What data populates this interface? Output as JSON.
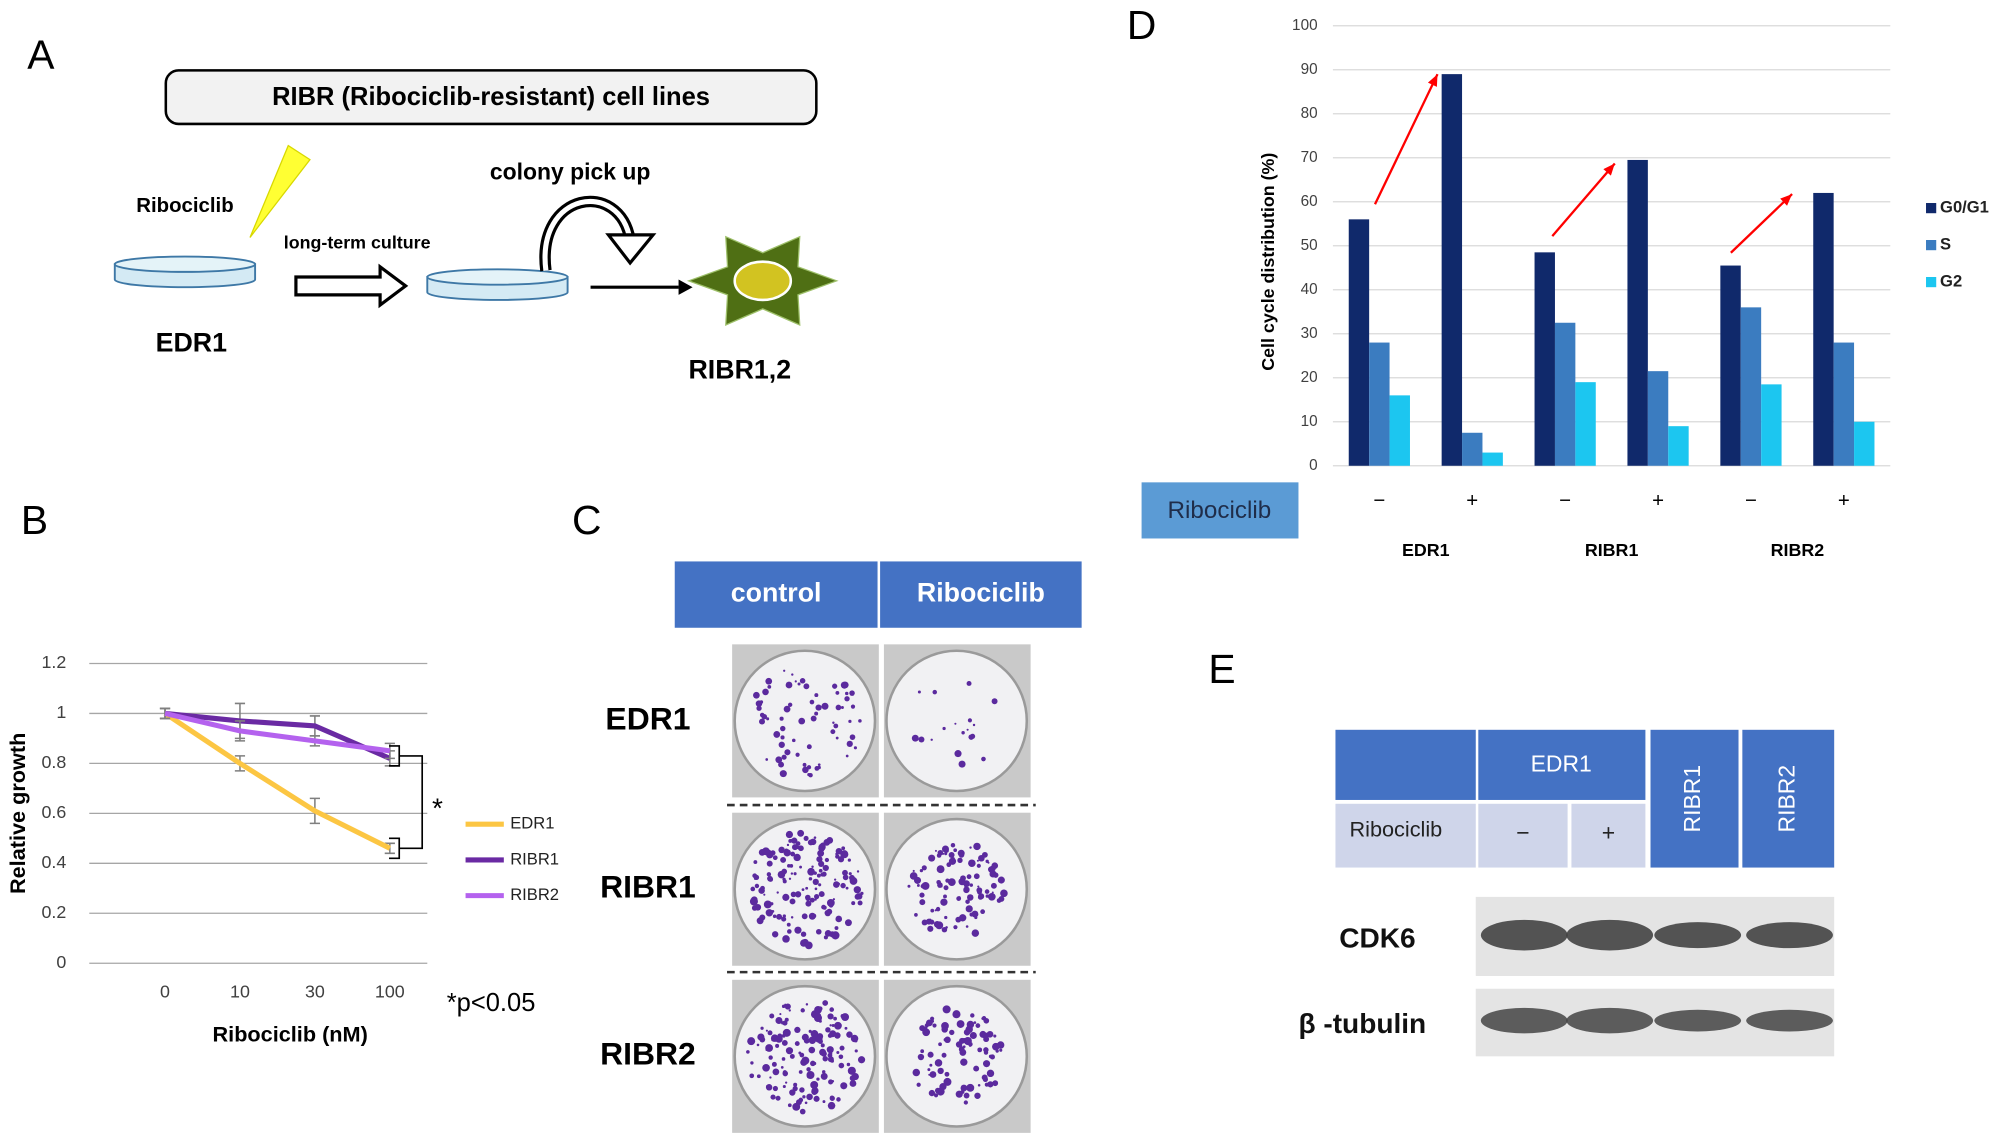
{
  "panel_labels": [
    "A",
    "B",
    "C",
    "D",
    "E"
  ],
  "panel_a": {
    "title": "RIBR (Ribociclib-resistant) cell lines",
    "drug": "Ribociclib",
    "step1": "long-term culture",
    "step2": "colony pick up",
    "source": "EDR1",
    "result": "RIBR1,2"
  },
  "chart_data": [
    {
      "type": "line",
      "xlabel": "Ribociclib (nM)",
      "ylabel": "Relative growth",
      "categories": [
        "0",
        "10",
        "30",
        "100"
      ],
      "ylim": [
        0,
        1.2
      ],
      "yticks": [
        0,
        0.2,
        0.4,
        0.6,
        0.8,
        1,
        1.2
      ],
      "grid": true,
      "legend": "right",
      "series": [
        {
          "name": "EDR1",
          "color": "#fcc643",
          "values": [
            1,
            0.8,
            0.61,
            0.46
          ],
          "errors": [
            0.02,
            0.03,
            0.05,
            0.02
          ]
        },
        {
          "name": "RIBR1",
          "color": "#6a2aa3",
          "values": [
            1,
            0.97,
            0.95,
            0.82
          ],
          "errors": [
            0.02,
            0.07,
            0.04,
            0.03
          ]
        },
        {
          "name": "RIBR2",
          "color": "#b462ee",
          "values": [
            1,
            0.93,
            0.89,
            0.85
          ],
          "errors": [
            0.02,
            0.04,
            0.02,
            0.03
          ]
        }
      ],
      "annotations": [
        "*",
        "*p<0.05"
      ]
    },
    {
      "type": "bar",
      "ylabel": "Cell cycle distribution (%)",
      "categories": [
        "−",
        "+",
        "−",
        "+",
        "−",
        "+"
      ],
      "groups": [
        "EDR1",
        "RIBR1",
        "RIBR2"
      ],
      "row_label": "Ribociclib",
      "ylim": [
        0,
        100
      ],
      "yticks": [
        0,
        10,
        20,
        30,
        40,
        50,
        60,
        70,
        80,
        90,
        100
      ],
      "grid": true,
      "legend": "right",
      "series": [
        {
          "name": "G0/G1",
          "color": "#10296b",
          "values": [
            56,
            89,
            48.5,
            69.5,
            45.5,
            62
          ]
        },
        {
          "name": "S",
          "color": "#3b7cc0",
          "values": [
            28,
            7.5,
            32.5,
            21.5,
            36,
            28
          ]
        },
        {
          "name": "G2",
          "color": "#1cc6f0",
          "values": [
            16,
            3,
            19,
            9,
            18.5,
            10
          ]
        }
      ]
    }
  ],
  "panel_c": {
    "columns": [
      "control",
      "Ribociclib"
    ],
    "rows": [
      "EDR1",
      "RIBR1",
      "RIBR2"
    ]
  },
  "panel_e": {
    "header": "EDR1",
    "columns": [
      "RIBR1",
      "RIBR2"
    ],
    "row_label": "Ribociclib",
    "treatments": [
      "−",
      "+"
    ],
    "blots": [
      "CDK6",
      "β -tubulin"
    ]
  }
}
